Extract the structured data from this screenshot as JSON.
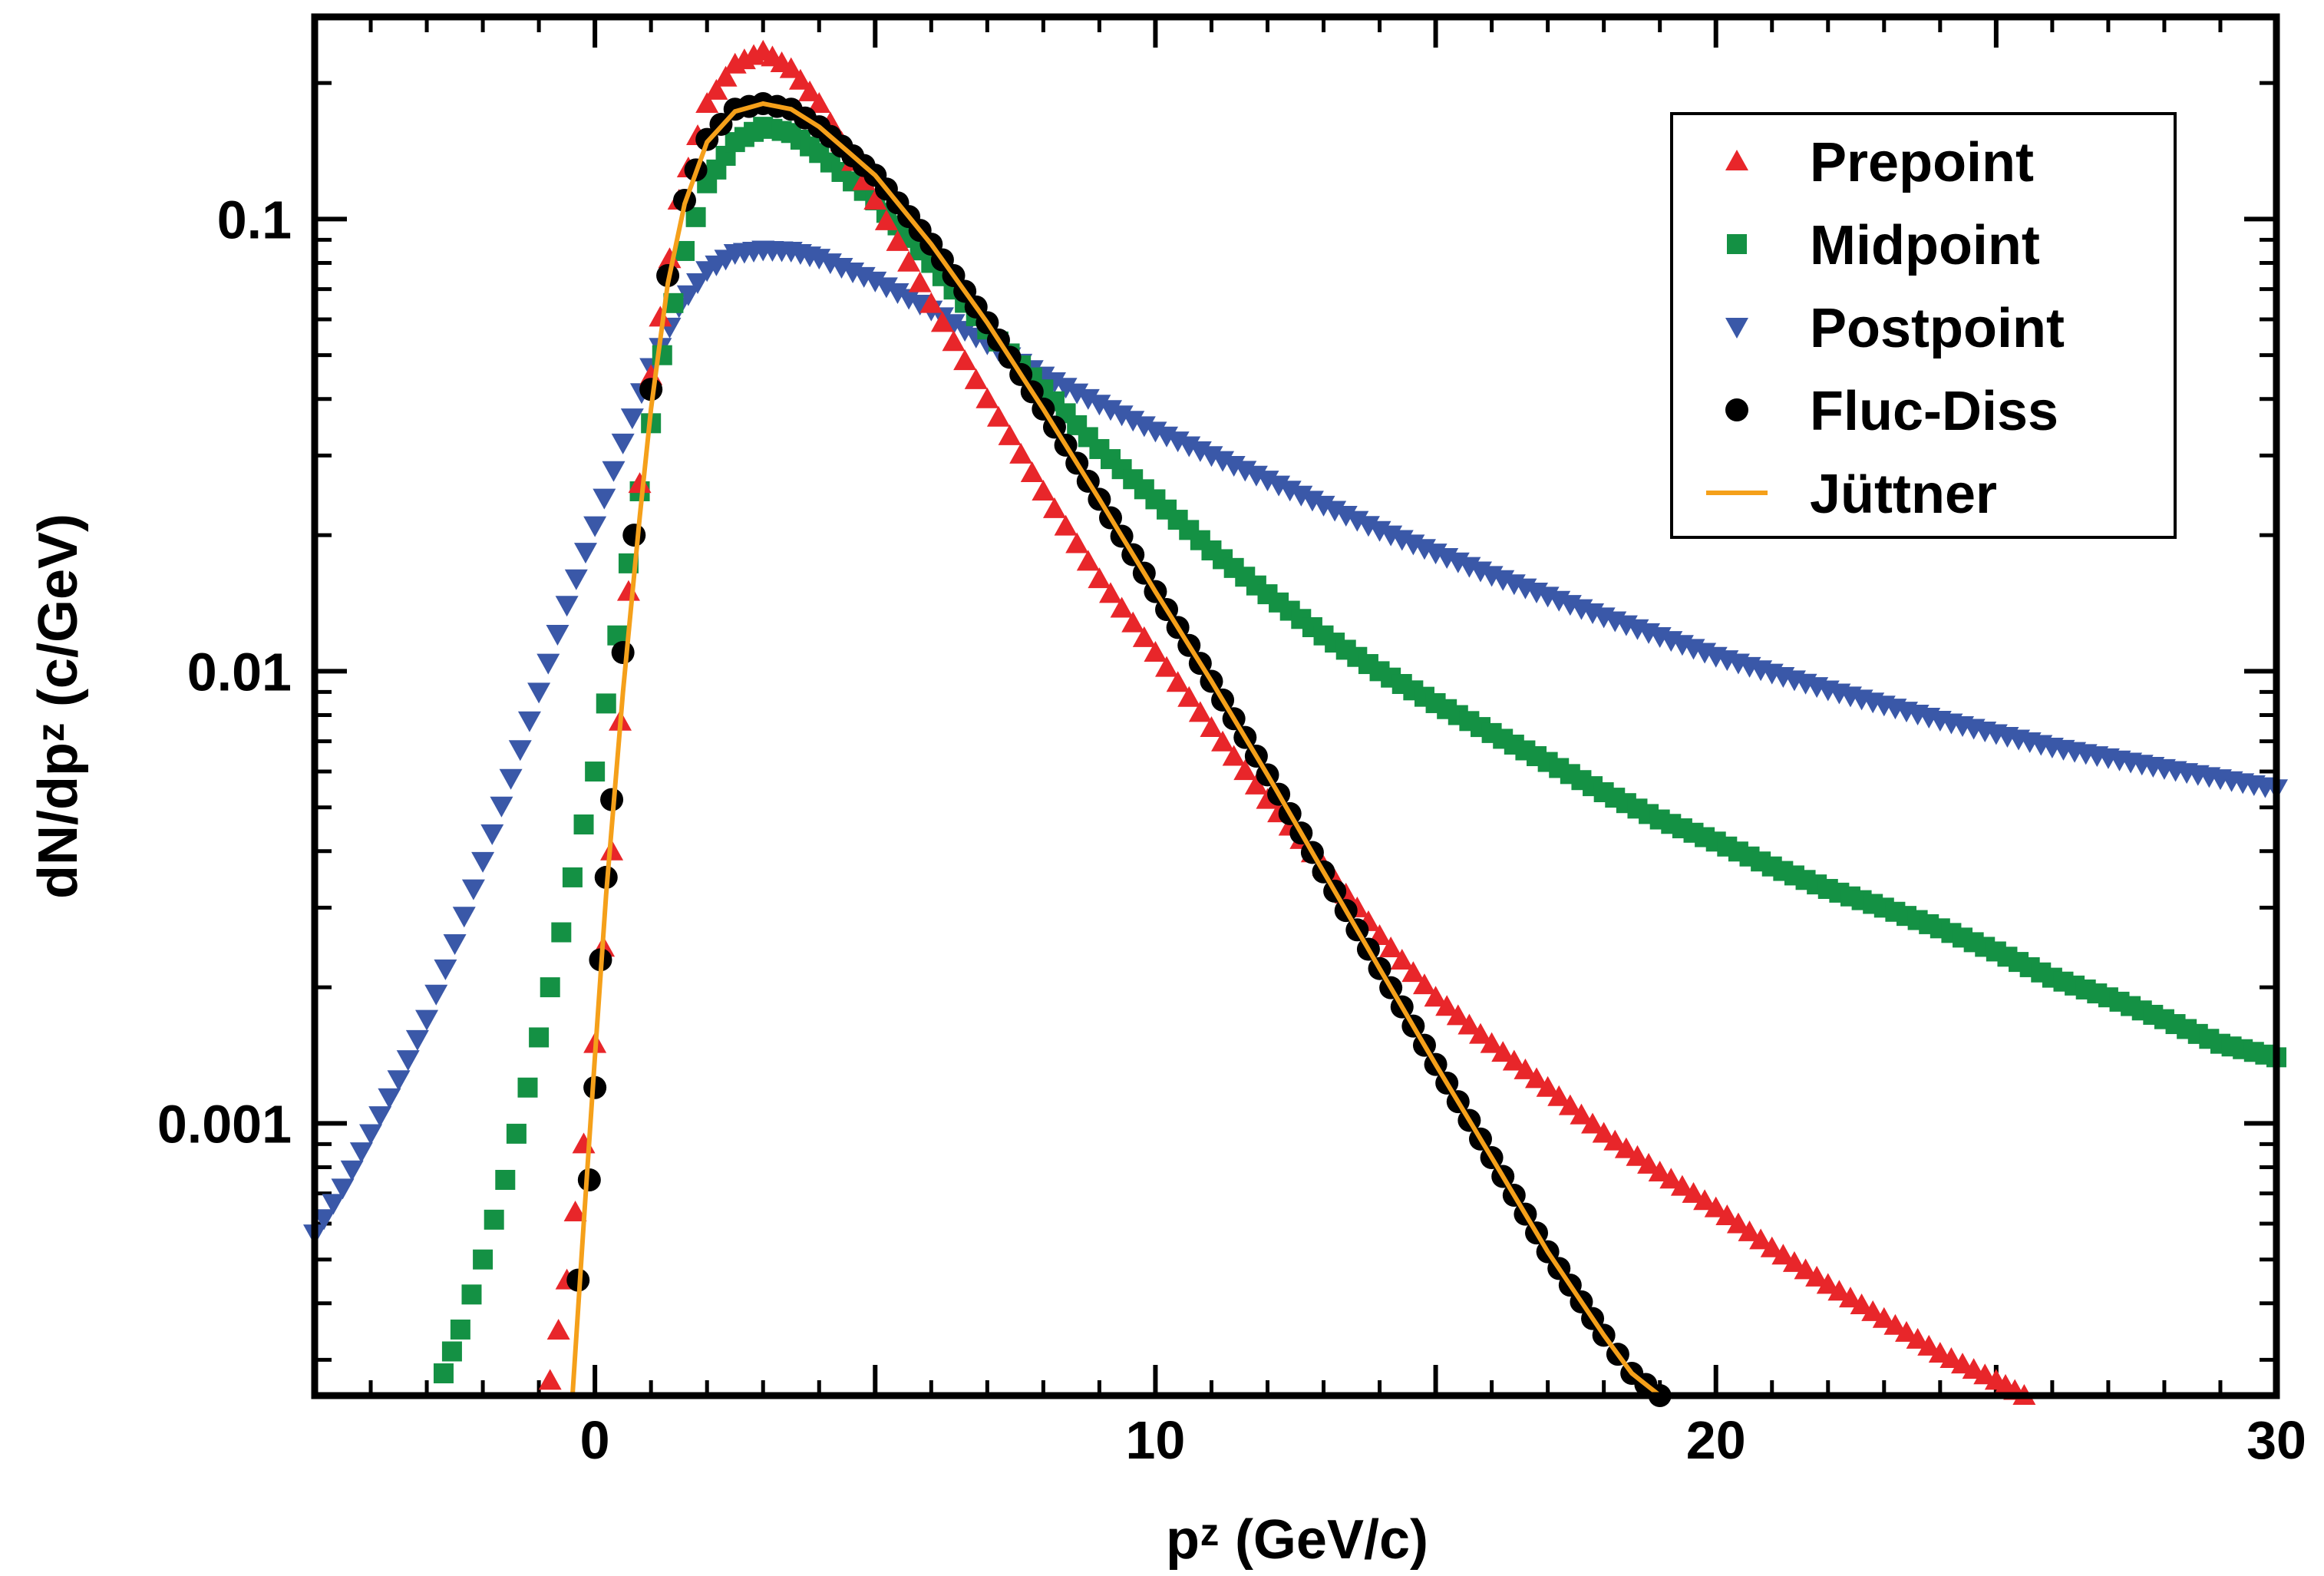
{
  "chart_data": {
    "type": "scatter",
    "title": "",
    "xlabel": "pᶻ (GeV/c)",
    "ylabel": "dN/dpᶻ (c/GeV)",
    "xlim": [
      -5,
      30
    ],
    "ylim": [
      0.00025,
      0.28
    ],
    "yscale": "log",
    "xticks": [
      0,
      10,
      20,
      30
    ],
    "xtick_labels": [
      "0",
      "10",
      "20",
      "30"
    ],
    "yticks": [
      0.001,
      0.01,
      0.1
    ],
    "ytick_labels": [
      "0.001",
      "0.01",
      "0.1"
    ],
    "legend_position": "top-right",
    "series": [
      {
        "name": "Prepoint",
        "marker": "triangle-up",
        "color": "#e8262a",
        "x": [
          -0.8,
          -0.5,
          -0.2,
          0.0,
          0.3,
          0.6,
          1.0,
          1.5,
          2.0,
          2.5,
          3.0,
          3.5,
          4.0,
          5.0,
          6.0,
          7.0,
          8.0,
          9.0,
          10.0,
          11.0,
          12.0,
          13.0,
          14.0,
          15.0,
          16.0,
          17.0,
          18.0,
          19.0,
          20.0,
          21.0,
          22.0,
          23.0,
          24.0,
          25.0,
          25.5
        ],
        "y": [
          0.00027,
          0.00045,
          0.0009,
          0.0015,
          0.004,
          0.015,
          0.045,
          0.11,
          0.18,
          0.22,
          0.235,
          0.215,
          0.18,
          0.11,
          0.065,
          0.04,
          0.025,
          0.016,
          0.011,
          0.0075,
          0.0052,
          0.0037,
          0.0026,
          0.0019,
          0.0015,
          0.0012,
          0.00095,
          0.00078,
          0.00065,
          0.00053,
          0.00044,
          0.00037,
          0.00031,
          0.00027,
          0.00025
        ]
      },
      {
        "name": "Midpoint",
        "marker": "square",
        "color": "#149144",
        "x": [
          -2.7,
          -2.4,
          -2.0,
          -1.6,
          -1.2,
          -0.8,
          -0.4,
          0.0,
          0.4,
          0.8,
          1.2,
          1.6,
          2.0,
          2.5,
          3.0,
          3.5,
          4.0,
          5.0,
          6.0,
          7.0,
          8.0,
          9.0,
          10.0,
          11.0,
          12.0,
          13.0,
          14.0,
          15.0,
          16.0,
          17.0,
          18.0,
          19.0,
          20.0,
          21.0,
          22.0,
          23.0,
          24.0,
          25.0,
          26.0,
          27.0,
          28.0,
          29.0,
          30.0
        ],
        "y": [
          0.00028,
          0.00035,
          0.0005,
          0.00075,
          0.0012,
          0.002,
          0.0035,
          0.006,
          0.012,
          0.025,
          0.05,
          0.085,
          0.12,
          0.148,
          0.16,
          0.155,
          0.14,
          0.11,
          0.08,
          0.057,
          0.042,
          0.031,
          0.024,
          0.0185,
          0.0148,
          0.012,
          0.01,
          0.0085,
          0.0073,
          0.0063,
          0.0054,
          0.0047,
          0.0042,
          0.0037,
          0.0033,
          0.003,
          0.0027,
          0.0024,
          0.0021,
          0.0019,
          0.0017,
          0.0015,
          0.0014
        ]
      },
      {
        "name": "Postpoint",
        "marker": "triangle-down",
        "color": "#3a58a8",
        "x": [
          -5.0,
          -4.5,
          -4.0,
          -3.5,
          -3.0,
          -2.5,
          -2.0,
          -1.5,
          -1.0,
          -0.5,
          0.0,
          0.5,
          1.0,
          1.5,
          2.0,
          2.5,
          3.0,
          3.5,
          4.0,
          5.0,
          6.0,
          7.0,
          8.0,
          9.0,
          10.0,
          12.0,
          14.0,
          16.0,
          18.0,
          20.0,
          22.0,
          24.0,
          26.0,
          28.0,
          30.0
        ],
        "y": [
          0.00057,
          0.00072,
          0.00095,
          0.00125,
          0.0017,
          0.0025,
          0.0038,
          0.0058,
          0.009,
          0.014,
          0.021,
          0.032,
          0.047,
          0.064,
          0.077,
          0.084,
          0.0855,
          0.085,
          0.082,
          0.073,
          0.063,
          0.053,
          0.045,
          0.039,
          0.034,
          0.0265,
          0.0205,
          0.0163,
          0.0132,
          0.0108,
          0.0091,
          0.0078,
          0.0068,
          0.0061,
          0.0055
        ]
      },
      {
        "name": "Fluc-Diss",
        "marker": "circle",
        "color": "#000000",
        "x": [
          -0.3,
          -0.1,
          0.0,
          0.1,
          0.2,
          0.3,
          0.5,
          0.7,
          1.0,
          1.3,
          1.6,
          2.0,
          2.5,
          3.0,
          3.5,
          4.0,
          5.0,
          6.0,
          7.0,
          8.0,
          9.0,
          10.0,
          11.0,
          12.0,
          13.0,
          14.0,
          15.0,
          16.0,
          17.0,
          18.0,
          18.5,
          19.0
        ],
        "y": [
          0.00045,
          0.00075,
          0.0012,
          0.0023,
          0.0035,
          0.0052,
          0.011,
          0.02,
          0.042,
          0.075,
          0.11,
          0.15,
          0.175,
          0.18,
          0.175,
          0.16,
          0.125,
          0.088,
          0.059,
          0.038,
          0.024,
          0.015,
          0.0095,
          0.0059,
          0.0036,
          0.0022,
          0.00135,
          0.00084,
          0.00052,
          0.00034,
          0.00028,
          0.00025
        ]
      },
      {
        "name": "Jüttner",
        "marker": "line",
        "color": "#f5a01a",
        "x": [
          -0.4,
          -0.2,
          0.0,
          0.2,
          0.5,
          0.8,
          1.0,
          1.3,
          1.6,
          2.0,
          2.5,
          3.0,
          3.5,
          4.0,
          5.0,
          6.0,
          7.0,
          8.0,
          9.0,
          10.0,
          11.0,
          12.0,
          13.0,
          14.0,
          15.0,
          16.0,
          17.0,
          18.0,
          18.5,
          19.0
        ],
        "y": [
          0.00025,
          0.0006,
          0.0014,
          0.0032,
          0.009,
          0.022,
          0.038,
          0.072,
          0.108,
          0.148,
          0.173,
          0.18,
          0.175,
          0.16,
          0.125,
          0.088,
          0.059,
          0.038,
          0.024,
          0.015,
          0.0095,
          0.0059,
          0.0036,
          0.0022,
          0.00135,
          0.00084,
          0.00052,
          0.00034,
          0.00028,
          0.00025
        ]
      }
    ]
  }
}
